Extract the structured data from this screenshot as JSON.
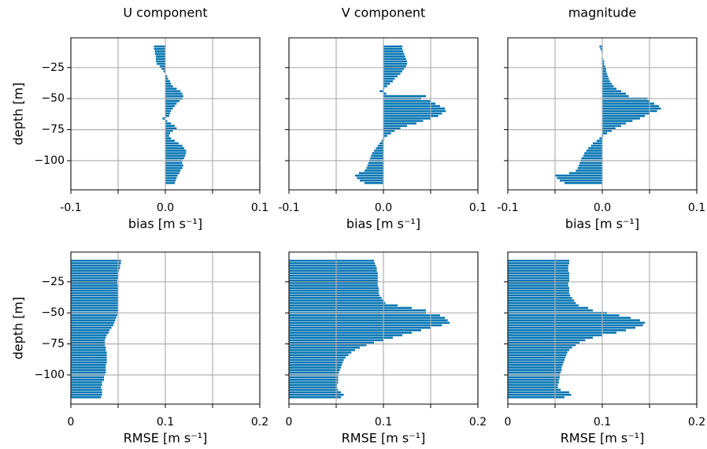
{
  "chart_data": [
    {
      "type": "barh",
      "title": "U component",
      "xlabel": "bias [m s⁻¹]",
      "ylabel": "depth [m]",
      "color": "#0173b2",
      "grid": true,
      "xlim": [
        -0.1,
        0.1
      ],
      "xticks": [
        -0.1,
        {
          "value": -0.05,
          "label": null
        },
        {
          "value": 0,
          "label": "0.0"
        },
        {
          "value": 0.05,
          "label": null
        },
        0.1
      ],
      "ylim": [
        -123.5,
        -1
      ],
      "yticks": [
        {
          "value": -25,
          "label": "−25"
        },
        {
          "value": -50,
          "label": "−50"
        },
        {
          "value": -75,
          "label": "−75"
        },
        {
          "value": -100,
          "label": "−100"
        }
      ],
      "y": [
        -8,
        -10,
        -12,
        -14,
        -16,
        -18,
        -20,
        -22,
        -24,
        -26,
        -28,
        -30,
        -32,
        -34,
        -36,
        -38,
        -40,
        -42,
        -44,
        -46,
        -48,
        -50,
        -52,
        -54,
        -56,
        -58,
        -60,
        -62,
        -64,
        -66,
        -68,
        -70,
        -72,
        -74,
        -76,
        -78,
        -80,
        -82,
        -84,
        -86,
        -88,
        -90,
        -92,
        -94,
        -96,
        -98,
        -100,
        -102,
        -104,
        -106,
        -108,
        -110,
        -112,
        -114,
        -116,
        -118
      ],
      "values": [
        -0.012,
        -0.012,
        -0.011,
        -0.011,
        -0.01,
        -0.01,
        -0.01,
        -0.009,
        -0.006,
        -0.004,
        -0.002,
        0.0,
        0.002,
        0.003,
        0.005,
        0.006,
        0.008,
        0.012,
        0.016,
        0.018,
        0.019,
        0.018,
        0.015,
        0.012,
        0.01,
        0.008,
        0.006,
        0.005,
        0.004,
        -0.003,
        0.002,
        0.006,
        0.01,
        0.012,
        0.008,
        0.005,
        0.004,
        0.006,
        0.01,
        0.014,
        0.018,
        0.02,
        0.022,
        0.022,
        0.021,
        0.02,
        0.018,
        0.018,
        0.019,
        0.018,
        0.016,
        0.015,
        0.013,
        0.012,
        0.011,
        0.01
      ]
    },
    {
      "type": "barh",
      "title": "V component",
      "xlabel": "bias [m s⁻¹]",
      "color": "#0173b2",
      "grid": true,
      "xlim": [
        -0.1,
        0.1
      ],
      "xticks": [
        -0.1,
        {
          "value": -0.05,
          "label": null
        },
        {
          "value": 0,
          "label": "0.0"
        },
        {
          "value": 0.05,
          "label": null
        },
        0.1
      ],
      "ylim": [
        -123.5,
        -1
      ],
      "yticks": [
        {
          "value": -25,
          "label": null
        },
        {
          "value": -50,
          "label": null
        },
        {
          "value": -75,
          "label": null
        },
        {
          "value": -100,
          "label": null
        }
      ],
      "y": [
        -8,
        -10,
        -12,
        -14,
        -16,
        -18,
        -20,
        -22,
        -24,
        -26,
        -28,
        -30,
        -32,
        -34,
        -36,
        -38,
        -40,
        -42,
        -44,
        -46,
        -48,
        -50,
        -52,
        -54,
        -56,
        -58,
        -60,
        -62,
        -64,
        -66,
        -68,
        -70,
        -72,
        -74,
        -76,
        -78,
        -80,
        -82,
        -84,
        -86,
        -88,
        -90,
        -92,
        -94,
        -96,
        -98,
        -100,
        -102,
        -104,
        -106,
        -108,
        -110,
        -112,
        -114,
        -116,
        -118
      ],
      "values": [
        0.02,
        0.02,
        0.021,
        0.022,
        0.023,
        0.024,
        0.025,
        0.025,
        0.024,
        0.022,
        0.02,
        0.018,
        0.015,
        0.012,
        0.01,
        0.007,
        0.004,
        0.001,
        -0.004,
        0.003,
        0.045,
        0.04,
        0.05,
        0.055,
        0.06,
        0.065,
        0.066,
        0.062,
        0.058,
        0.05,
        0.042,
        0.035,
        0.025,
        0.018,
        0.012,
        0.008,
        0.004,
        0.001,
        -0.002,
        -0.004,
        -0.006,
        -0.008,
        -0.01,
        -0.012,
        -0.013,
        -0.014,
        -0.015,
        -0.016,
        -0.017,
        -0.018,
        -0.02,
        -0.026,
        -0.03,
        -0.028,
        -0.025,
        -0.02
      ]
    },
    {
      "type": "barh",
      "title": "magnitude",
      "xlabel": "bias [m s⁻¹]",
      "color": "#0173b2",
      "grid": true,
      "xlim": [
        -0.1,
        0.1
      ],
      "xticks": [
        -0.1,
        {
          "value": -0.05,
          "label": null
        },
        {
          "value": 0,
          "label": "0.0"
        },
        {
          "value": 0.05,
          "label": null
        },
        0.1
      ],
      "ylim": [
        -123.5,
        -1
      ],
      "yticks": [
        {
          "value": -25,
          "label": null
        },
        {
          "value": -50,
          "label": null
        },
        {
          "value": -75,
          "label": null
        },
        {
          "value": -100,
          "label": null
        }
      ],
      "y": [
        -8,
        -10,
        -12,
        -14,
        -16,
        -18,
        -20,
        -22,
        -24,
        -26,
        -28,
        -30,
        -32,
        -34,
        -36,
        -38,
        -40,
        -42,
        -44,
        -46,
        -48,
        -50,
        -52,
        -54,
        -56,
        -58,
        -60,
        -62,
        -64,
        -66,
        -68,
        -70,
        -72,
        -74,
        -76,
        -78,
        -80,
        -82,
        -84,
        -86,
        -88,
        -90,
        -92,
        -94,
        -96,
        -98,
        -100,
        -102,
        -104,
        -106,
        -108,
        -110,
        -112,
        -114,
        -116,
        -118
      ],
      "values": [
        -0.003,
        -0.002,
        -0.001,
        0.0,
        0.0,
        0.001,
        0.002,
        0.002,
        0.003,
        0.004,
        0.004,
        0.005,
        0.006,
        0.007,
        0.008,
        0.01,
        0.012,
        0.015,
        0.02,
        0.025,
        0.028,
        0.048,
        0.05,
        0.055,
        0.06,
        0.062,
        0.058,
        0.05,
        0.045,
        0.04,
        0.032,
        0.025,
        0.02,
        0.014,
        0.01,
        0.005,
        0.001,
        -0.003,
        -0.006,
        -0.01,
        -0.012,
        -0.015,
        -0.017,
        -0.019,
        -0.02,
        -0.022,
        -0.023,
        -0.024,
        -0.025,
        -0.026,
        -0.028,
        -0.035,
        -0.05,
        -0.048,
        -0.045,
        -0.04
      ]
    },
    {
      "type": "barh",
      "xlabel": "RMSE [m s⁻¹]",
      "ylabel": "depth [m]",
      "color": "#0173b2",
      "grid": true,
      "xlim": [
        0,
        0.2
      ],
      "xticks": [
        0,
        {
          "value": 0.05,
          "label": null
        },
        0.1,
        {
          "value": 0.15,
          "label": null
        },
        0.2
      ],
      "ylim": [
        -123.5,
        -1
      ],
      "yticks": [
        {
          "value": -25,
          "label": "−25"
        },
        {
          "value": -50,
          "label": "−50"
        },
        {
          "value": -75,
          "label": "−75"
        },
        {
          "value": -100,
          "label": "−100"
        }
      ],
      "y": [
        -8,
        -10,
        -12,
        -14,
        -16,
        -18,
        -20,
        -22,
        -24,
        -26,
        -28,
        -30,
        -32,
        -34,
        -36,
        -38,
        -40,
        -42,
        -44,
        -46,
        -48,
        -50,
        -52,
        -54,
        -56,
        -58,
        -60,
        -62,
        -64,
        -66,
        -68,
        -70,
        -72,
        -74,
        -76,
        -78,
        -80,
        -82,
        -84,
        -86,
        -88,
        -90,
        -92,
        -94,
        -96,
        -98,
        -100,
        -102,
        -104,
        -106,
        -108,
        -110,
        -112,
        -114,
        -116,
        -118
      ],
      "values": [
        0.053,
        0.053,
        0.052,
        0.052,
        0.051,
        0.05,
        0.05,
        0.05,
        0.049,
        0.049,
        0.05,
        0.05,
        0.05,
        0.05,
        0.05,
        0.05,
        0.05,
        0.05,
        0.05,
        0.05,
        0.05,
        0.05,
        0.049,
        0.048,
        0.047,
        0.046,
        0.045,
        0.043,
        0.041,
        0.04,
        0.038,
        0.037,
        0.036,
        0.036,
        0.036,
        0.037,
        0.037,
        0.038,
        0.038,
        0.038,
        0.038,
        0.038,
        0.037,
        0.037,
        0.037,
        0.037,
        0.036,
        0.035,
        0.035,
        0.033,
        0.033,
        0.032,
        0.033,
        0.033,
        0.033,
        0.032
      ]
    },
    {
      "type": "barh",
      "xlabel": "RMSE [m s⁻¹]",
      "color": "#0173b2",
      "grid": true,
      "xlim": [
        0,
        0.2
      ],
      "xticks": [
        0,
        {
          "value": 0.05,
          "label": null
        },
        0.1,
        {
          "value": 0.15,
          "label": null
        },
        0.2
      ],
      "ylim": [
        -123.5,
        -1
      ],
      "yticks": [
        {
          "value": -25,
          "label": null
        },
        {
          "value": -50,
          "label": null
        },
        {
          "value": -75,
          "label": null
        },
        {
          "value": -100,
          "label": null
        }
      ],
      "y": [
        -8,
        -10,
        -12,
        -14,
        -16,
        -18,
        -20,
        -22,
        -24,
        -26,
        -28,
        -30,
        -32,
        -34,
        -36,
        -38,
        -40,
        -42,
        -44,
        -46,
        -48,
        -50,
        -52,
        -54,
        -56,
        -58,
        -60,
        -62,
        -64,
        -66,
        -68,
        -70,
        -72,
        -74,
        -76,
        -78,
        -80,
        -82,
        -84,
        -86,
        -88,
        -90,
        -92,
        -94,
        -96,
        -98,
        -100,
        -102,
        -104,
        -106,
        -108,
        -110,
        -112,
        -114,
        -116,
        -118
      ],
      "values": [
        0.09,
        0.091,
        0.092,
        0.093,
        0.093,
        0.094,
        0.094,
        0.094,
        0.094,
        0.094,
        0.094,
        0.095,
        0.095,
        0.095,
        0.096,
        0.098,
        0.1,
        0.102,
        0.115,
        0.13,
        0.145,
        0.145,
        0.16,
        0.165,
        0.168,
        0.17,
        0.162,
        0.15,
        0.14,
        0.13,
        0.12,
        0.11,
        0.1,
        0.09,
        0.082,
        0.075,
        0.07,
        0.066,
        0.063,
        0.06,
        0.058,
        0.057,
        0.056,
        0.055,
        0.054,
        0.053,
        0.052,
        0.052,
        0.052,
        0.052,
        0.051,
        0.051,
        0.052,
        0.055,
        0.058,
        0.055
      ]
    },
    {
      "type": "barh",
      "xlabel": "RMSE [m s⁻¹]",
      "color": "#0173b2",
      "grid": true,
      "xlim": [
        0,
        0.2
      ],
      "xticks": [
        0,
        {
          "value": 0.05,
          "label": null
        },
        0.1,
        {
          "value": 0.15,
          "label": null
        },
        0.2
      ],
      "ylim": [
        -123.5,
        -1
      ],
      "yticks": [
        {
          "value": -25,
          "label": null
        },
        {
          "value": -50,
          "label": null
        },
        {
          "value": -75,
          "label": null
        },
        {
          "value": -100,
          "label": null
        }
      ],
      "y": [
        -8,
        -10,
        -12,
        -14,
        -16,
        -18,
        -20,
        -22,
        -24,
        -26,
        -28,
        -30,
        -32,
        -34,
        -36,
        -38,
        -40,
        -42,
        -44,
        -46,
        -48,
        -50,
        -52,
        -54,
        -56,
        -58,
        -60,
        -62,
        -64,
        -66,
        -68,
        -70,
        -72,
        -74,
        -76,
        -78,
        -80,
        -82,
        -84,
        -86,
        -88,
        -90,
        -92,
        -94,
        -96,
        -98,
        -100,
        -102,
        -104,
        -106,
        -108,
        -110,
        -112,
        -114,
        -116,
        -118
      ],
      "values": [
        0.065,
        0.065,
        0.064,
        0.064,
        0.064,
        0.065,
        0.065,
        0.065,
        0.065,
        0.064,
        0.064,
        0.065,
        0.065,
        0.065,
        0.066,
        0.068,
        0.07,
        0.072,
        0.075,
        0.085,
        0.09,
        0.105,
        0.118,
        0.13,
        0.14,
        0.145,
        0.143,
        0.135,
        0.125,
        0.115,
        0.1,
        0.09,
        0.082,
        0.076,
        0.072,
        0.068,
        0.065,
        0.063,
        0.062,
        0.061,
        0.06,
        0.059,
        0.058,
        0.057,
        0.057,
        0.056,
        0.055,
        0.055,
        0.054,
        0.054,
        0.053,
        0.053,
        0.056,
        0.065,
        0.067,
        0.06
      ]
    }
  ]
}
